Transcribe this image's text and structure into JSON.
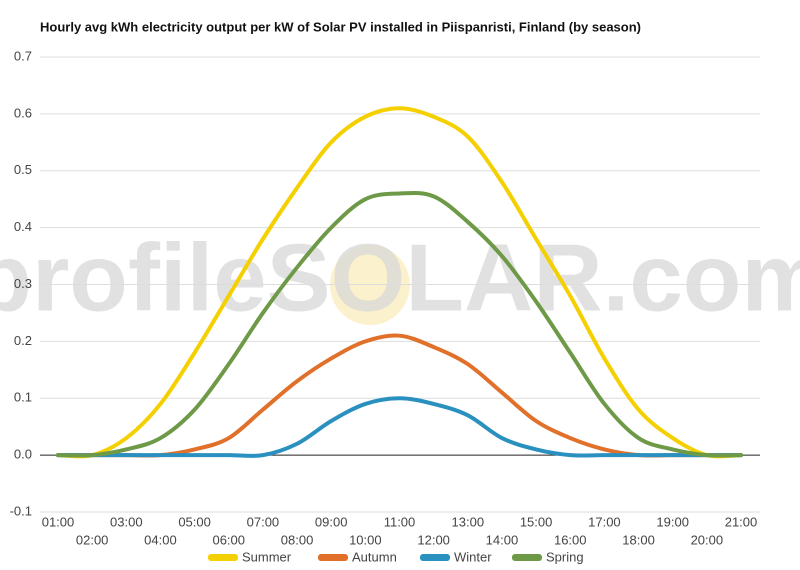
{
  "chart_data": {
    "type": "line",
    "title": "Hourly avg kWh electricity output per kW of Solar PV installed in Piispanristi, Finland (by season)",
    "watermark": "profileSOLAR.com",
    "categories": [
      "01:00",
      "02:00",
      "03:00",
      "04:00",
      "05:00",
      "06:00",
      "07:00",
      "08:00",
      "09:00",
      "10:00",
      "11:00",
      "12:00",
      "13:00",
      "14:00",
      "15:00",
      "16:00",
      "17:00",
      "18:00",
      "19:00",
      "20:00",
      "21:00"
    ],
    "series": [
      {
        "name": "Summer",
        "color": "#f5d000",
        "values": [
          0,
          0,
          0.03,
          0.09,
          0.18,
          0.28,
          0.38,
          0.47,
          0.55,
          0.595,
          0.61,
          0.595,
          0.56,
          0.48,
          0.38,
          0.28,
          0.17,
          0.08,
          0.03,
          0,
          0
        ]
      },
      {
        "name": "Autumn",
        "color": "#e0702a",
        "values": [
          0,
          0,
          0,
          0,
          0.01,
          0.03,
          0.08,
          0.13,
          0.17,
          0.2,
          0.21,
          0.19,
          0.16,
          0.11,
          0.06,
          0.03,
          0.01,
          0,
          0,
          0,
          0
        ]
      },
      {
        "name": "Winter",
        "color": "#2a90c0",
        "values": [
          0,
          0,
          0,
          0,
          0,
          0,
          0,
          0.02,
          0.06,
          0.09,
          0.1,
          0.09,
          0.07,
          0.03,
          0.01,
          0,
          0,
          0,
          0,
          0,
          0
        ]
      },
      {
        "name": "Spring",
        "color": "#6e9a48",
        "values": [
          0,
          0,
          0.01,
          0.03,
          0.08,
          0.16,
          0.25,
          0.33,
          0.4,
          0.45,
          0.46,
          0.455,
          0.41,
          0.35,
          0.27,
          0.18,
          0.09,
          0.03,
          0.01,
          0,
          0
        ]
      }
    ],
    "ylim": [
      -0.1,
      0.7
    ],
    "yticks": [
      -0.1,
      {
        "value": 0,
        "label": "0.0"
      },
      0.1,
      0.2,
      0.3,
      0.4,
      0.5,
      0.6,
      0.7
    ],
    "grid": true,
    "legend": "bottom"
  }
}
